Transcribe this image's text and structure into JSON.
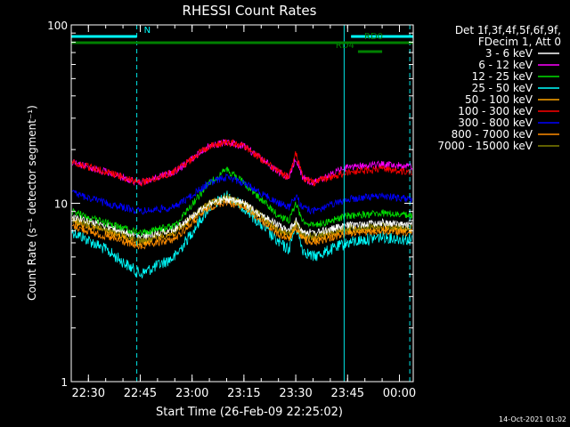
{
  "colors": {
    "background": "#000000",
    "foreground": "#ffffff",
    "grid_marker": "#00e5e5"
  },
  "chart_data": {
    "type": "line",
    "title": "RHESSI Count Rates",
    "ylabel": "Count Rate (s⁻¹ detector segment⁻¹)",
    "xlabel": "Start Time (26-Feb-09 22:25:02)",
    "y_scale": "log",
    "ylim": [
      1,
      100
    ],
    "xlim": [
      "22:25:02",
      "00:04:00"
    ],
    "x_ticks": [
      "22:30",
      "22:45",
      "23:00",
      "23:15",
      "23:30",
      "23:45",
      "00:00"
    ],
    "y_ticks": [
      "1",
      "10",
      "100"
    ],
    "footer_date": "14-Oct-2021 01:02",
    "legend": {
      "header": [
        "Det 1f,3f,4f,5f,6f,9f,",
        "FDecim 1, Att 0"
      ],
      "entries": [
        {
          "label": "3 - 6 keV",
          "color": "#ffffff"
        },
        {
          "label": "6 - 12 keV",
          "color": "#ff00ff"
        },
        {
          "label": "12 - 25 keV",
          "color": "#00e000"
        },
        {
          "label": "25 - 50 keV",
          "color": "#00ffff"
        },
        {
          "label": "50 - 100 keV",
          "color": "#ffa500"
        },
        {
          "label": "100 - 300 keV",
          "color": "#ff0000"
        },
        {
          "label": "300 - 800 keV",
          "color": "#0000ff"
        },
        {
          "label": "800 - 7000 keV",
          "color": "#ff8c00"
        },
        {
          "label": "7000 - 15000 keV",
          "color": "#808000"
        }
      ]
    },
    "state_bars": [
      {
        "label": "N",
        "color": "#00ffff",
        "segments": [
          [
            "22:25:02",
            "22:44:00"
          ],
          [
            "23:46:00",
            "00:04:00"
          ]
        ]
      },
      {
        "label": "RD0",
        "color": "#008000",
        "segments": [
          [
            "22:25:02",
            "00:04:00"
          ]
        ]
      },
      {
        "label": "RD4",
        "color": "#008000",
        "segments": [
          [
            "23:48:00",
            "23:55:00"
          ]
        ]
      }
    ],
    "vertical_markers": [
      {
        "time": "22:25:02",
        "style": "solid"
      },
      {
        "time": "22:44:00",
        "style": "dashed"
      },
      {
        "time": "23:44:00",
        "style": "solid"
      },
      {
        "time": "00:03:00",
        "style": "dashed"
      }
    ],
    "time_x": [
      "22:25",
      "22:35",
      "22:45",
      "22:55",
      "23:05",
      "23:10",
      "23:15",
      "23:25",
      "23:28",
      "23:30",
      "23:32",
      "23:35",
      "23:45",
      "23:55",
      "00:04"
    ],
    "series": [
      {
        "name": "3 - 6 keV",
        "color": "#ffffff",
        "values": [
          8.5,
          7.5,
          6.5,
          7.2,
          10,
          10.5,
          10,
          7.5,
          7,
          8,
          7,
          6.8,
          7.5,
          7.8,
          7.5
        ]
      },
      {
        "name": "6 - 12 keV",
        "color": "#ff00ff",
        "values": [
          17,
          15,
          13,
          15,
          21,
          22,
          21,
          15,
          14,
          18,
          14,
          13,
          16,
          16.5,
          16
        ]
      },
      {
        "name": "12 - 25 keV",
        "color": "#00e000",
        "values": [
          9,
          7.8,
          6.8,
          7.5,
          13,
          15.5,
          13,
          8.5,
          8,
          10,
          8,
          7.5,
          8.5,
          8.8,
          8.5
        ]
      },
      {
        "name": "25 - 50 keV",
        "color": "#00ffff",
        "values": [
          7,
          5.5,
          4,
          5,
          9.5,
          11,
          9.5,
          6,
          5.5,
          7.5,
          5.5,
          5,
          6,
          6.5,
          6.2
        ]
      },
      {
        "name": "50 - 100 keV",
        "color": "#ffa500",
        "values": [
          8,
          7,
          6,
          6.8,
          10,
          10.5,
          10,
          7,
          6.5,
          7.5,
          6.5,
          6.3,
          7,
          7.3,
          7
        ]
      },
      {
        "name": "100 - 300 keV",
        "color": "#ff0000",
        "values": [
          17,
          15,
          13,
          15,
          21,
          22,
          21,
          15,
          14,
          19,
          14,
          13,
          15,
          15.5,
          15
        ]
      },
      {
        "name": "300 - 800 keV",
        "color": "#0000ff",
        "values": [
          11.5,
          10,
          9,
          9.5,
          13,
          14,
          13,
          10,
          9.5,
          11,
          9.5,
          9,
          10.5,
          11,
          10.5
        ]
      },
      {
        "name": "800 - 7000 keV",
        "color": "#ff8c00",
        "values": [
          7.5,
          6.5,
          5.7,
          6.3,
          9.5,
          10.2,
          9.5,
          6.7,
          6.3,
          7.3,
          6.3,
          6,
          6.8,
          7,
          6.8
        ]
      },
      {
        "name": "7000 - 15000 keV",
        "color": "#808000",
        "values": [
          8.2,
          7.2,
          6.2,
          7,
          10,
          10.8,
          10,
          7.2,
          6.8,
          7.8,
          6.8,
          6.6,
          7.3,
          7.5,
          7.3
        ]
      }
    ]
  }
}
